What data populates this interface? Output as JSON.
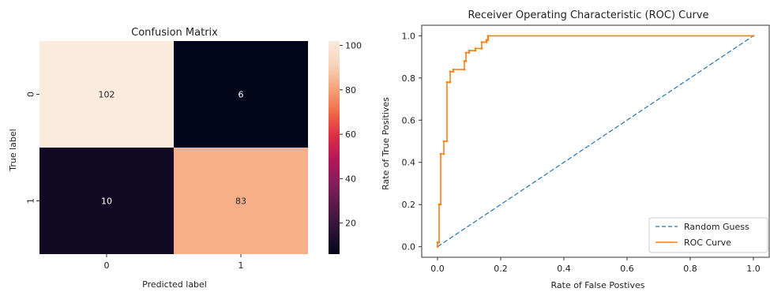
{
  "chart_data": [
    {
      "type": "heatmap",
      "title": "Confusion Matrix",
      "xlabel": "Predicted label",
      "ylabel": "True label",
      "x_tick_labels": [
        "0",
        "1"
      ],
      "y_tick_labels": [
        "0",
        "1"
      ],
      "matrix": [
        [
          102,
          6
        ],
        [
          10,
          83
        ]
      ],
      "cell_labels": [
        [
          "102",
          "6"
        ],
        [
          "10",
          "83"
        ]
      ],
      "colorbar": {
        "range": [
          6,
          102
        ],
        "ticks": [
          20,
          40,
          60,
          80,
          100
        ],
        "tick_labels": [
          "20",
          "40",
          "60",
          "80",
          "100"
        ]
      },
      "colormap_colors": [
        "#03051a",
        "#2a1336",
        "#561a47",
        "#841e5a",
        "#b21759",
        "#dc2e44",
        "#ef6c47",
        "#f6a47a",
        "#f7d4b9",
        "#faebdd"
      ]
    },
    {
      "type": "line",
      "title": "Receiver Operating Characteristic (ROC) Curve",
      "xlabel": "Rate of False Postives",
      "ylabel": "Rate of True Positives",
      "xlim": [
        -0.05,
        1.05
      ],
      "ylim": [
        -0.05,
        1.05
      ],
      "xticks": [
        0.0,
        0.2,
        0.4,
        0.6,
        0.8,
        1.0
      ],
      "xtick_labels": [
        "0.0",
        "0.2",
        "0.4",
        "0.6",
        "0.8",
        "1.0"
      ],
      "yticks": [
        0.0,
        0.2,
        0.4,
        0.6,
        0.8,
        1.0
      ],
      "ytick_labels": [
        "0.0",
        "0.2",
        "0.4",
        "0.6",
        "0.8",
        "1.0"
      ],
      "legend_position": "lower-right",
      "series": [
        {
          "name": "Random Guess",
          "style": "dashed",
          "color": "#1f77b4",
          "x": [
            0,
            1
          ],
          "y": [
            0,
            1
          ]
        },
        {
          "name": "ROC Curve",
          "style": "solid",
          "color": "#ff7f0e",
          "x": [
            0.0,
            0.0,
            0.005,
            0.005,
            0.01,
            0.01,
            0.02,
            0.02,
            0.03,
            0.03,
            0.04,
            0.04,
            0.05,
            0.05,
            0.085,
            0.085,
            0.09,
            0.09,
            0.1,
            0.1,
            0.12,
            0.12,
            0.14,
            0.14,
            0.155,
            0.155,
            0.16,
            0.16,
            0.16,
            1.0
          ],
          "y": [
            0.0,
            0.02,
            0.02,
            0.2,
            0.2,
            0.44,
            0.44,
            0.5,
            0.5,
            0.78,
            0.78,
            0.83,
            0.83,
            0.84,
            0.84,
            0.88,
            0.88,
            0.92,
            0.92,
            0.93,
            0.93,
            0.94,
            0.94,
            0.97,
            0.97,
            0.98,
            0.98,
            0.99,
            1.0,
            1.0
          ]
        }
      ]
    }
  ]
}
